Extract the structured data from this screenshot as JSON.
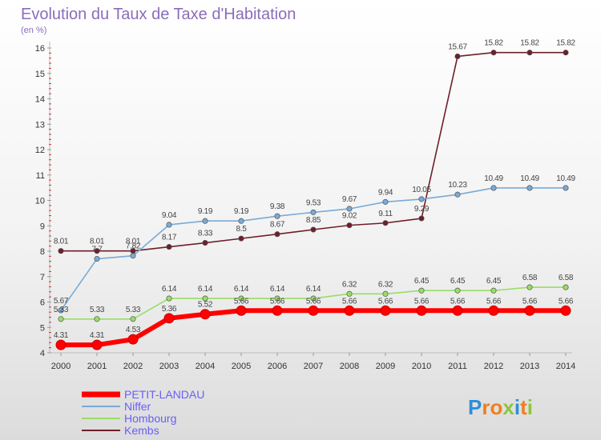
{
  "chart_data": {
    "type": "line",
    "title": "Evolution du Taux de Taxe d'Habitation",
    "subtitle": "(en %)",
    "x": [
      "2000",
      "2001",
      "2002",
      "2003",
      "2004",
      "2005",
      "2006",
      "2007",
      "2008",
      "2009",
      "2010",
      "2011",
      "2012",
      "2013",
      "2014"
    ],
    "yticks": [
      "4",
      "5",
      "6",
      "7",
      "8",
      "9",
      "10",
      "11",
      "12",
      "13",
      "14",
      "15",
      "16"
    ],
    "ylim": [
      4,
      16
    ],
    "grid": false,
    "legend_position": "bottom-left",
    "series": [
      {
        "name": "Kembs",
        "color": "#6e1f2a",
        "values": [
          8.01,
          8.01,
          8.01,
          8.17,
          8.33,
          8.5,
          8.67,
          8.85,
          9.02,
          9.11,
          9.29,
          15.67,
          15.82,
          15.82,
          15.82
        ],
        "labels": [
          "8.01",
          "8.01",
          "8.01",
          "8.17",
          "8.33",
          "8.5",
          "8.67",
          "8.85",
          "9.02",
          "9.11",
          "9.29",
          "15.67",
          "15.82",
          "15.82",
          "15.82"
        ]
      },
      {
        "name": "Hombourg",
        "color": "#99dd66",
        "values": [
          5.33,
          5.33,
          5.33,
          6.14,
          6.14,
          6.14,
          6.14,
          6.14,
          6.32,
          6.32,
          6.45,
          6.45,
          6.45,
          6.58,
          6.58
        ],
        "labels": [
          "5.33",
          "5.33",
          "5.33",
          "6.14",
          "6.14",
          "6.14",
          "6.14",
          "6.14",
          "6.32",
          "6.32",
          "6.45",
          "6.45",
          "6.45",
          "6.58",
          "6.58"
        ]
      },
      {
        "name": "Niffer",
        "color": "#7aaad4",
        "values": [
          5.67,
          7.7,
          7.82,
          9.04,
          9.19,
          9.19,
          9.38,
          9.53,
          9.67,
          9.94,
          10.05,
          10.23,
          10.49,
          10.49,
          10.49
        ],
        "labels": [
          "5.67",
          "7.7",
          "7.82",
          "9.04",
          "9.19",
          "9.19",
          "9.38",
          "9.53",
          "9.67",
          "9.94",
          "10.05",
          "10.23",
          "10.49",
          "10.49",
          "10.49"
        ]
      },
      {
        "name": "PETIT-LANDAU",
        "color": "#ff0000",
        "values": [
          4.31,
          4.31,
          4.53,
          5.36,
          5.52,
          5.66,
          5.66,
          5.66,
          5.66,
          5.66,
          5.66,
          5.66,
          5.66,
          5.66,
          5.66
        ],
        "labels": [
          "4.31",
          "4.31",
          "4.53",
          "5.36",
          "5.52",
          "5.66",
          "5.66",
          "5.66",
          "5.66",
          "5.66",
          "5.66",
          "5.66",
          "5.66",
          "5.66",
          "5.66"
        ]
      }
    ],
    "legend": [
      "PETIT-LANDAU",
      "Niffer",
      "Hombourg",
      "Kembs"
    ]
  },
  "logo": {
    "letters": [
      {
        "char": "P",
        "color": "#2d8fd6"
      },
      {
        "char": "r",
        "color": "#f07f1f"
      },
      {
        "char": "o",
        "color": "#f07f1f"
      },
      {
        "char": "x",
        "color": "#8dc63f"
      },
      {
        "char": "i",
        "color": "#2d8fd6"
      },
      {
        "char": "t",
        "color": "#f07f1f"
      },
      {
        "char": "i",
        "color": "#8dc63f"
      }
    ]
  }
}
